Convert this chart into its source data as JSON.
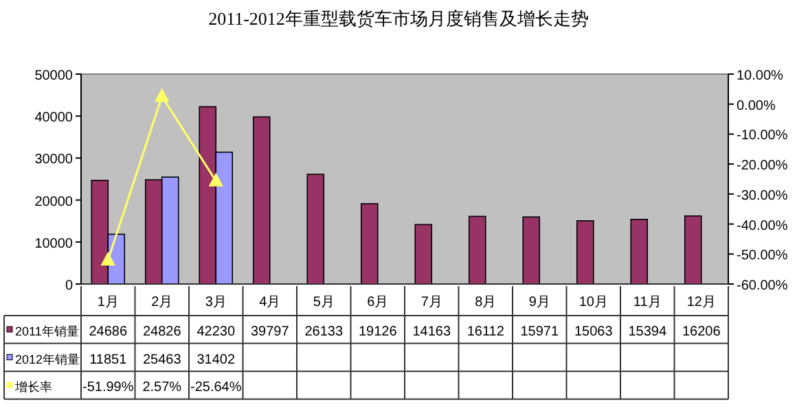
{
  "chart_data": {
    "type": "bar",
    "title": "2011-2012年重型载货车市场月度销售及增长走势",
    "categories": [
      "1月",
      "2月",
      "3月",
      "4月",
      "5月",
      "6月",
      "7月",
      "8月",
      "9月",
      "10月",
      "11月",
      "12月"
    ],
    "series": [
      {
        "name": "2011年销量",
        "color": "#993366",
        "values": [
          24686,
          24826,
          42230,
          39797,
          26133,
          19126,
          14163,
          16112,
          15971,
          15063,
          15394,
          16206
        ],
        "value_labels": [
          "24686",
          "24826",
          "42230",
          "39797",
          "26133",
          "19126",
          "14163",
          "16112",
          "15971",
          "15063",
          "15394",
          "16206"
        ]
      },
      {
        "name": "2012年销量",
        "color": "#9999ff",
        "values": [
          11851,
          25463,
          31402,
          null,
          null,
          null,
          null,
          null,
          null,
          null,
          null,
          null
        ],
        "value_labels": [
          "11851",
          "25463",
          "31402",
          null,
          null,
          null,
          null,
          null,
          null,
          null,
          null,
          null
        ]
      },
      {
        "name": "增长率",
        "type": "line",
        "axis": "y2",
        "color": "#ffff66",
        "marker": "triangle",
        "values": [
          -51.99,
          2.57,
          -25.64,
          null,
          null,
          null,
          null,
          null,
          null,
          null,
          null,
          null
        ],
        "value_labels": [
          "-51.99%",
          "2.57%",
          "-25.64%",
          null,
          null,
          null,
          null,
          null,
          null,
          null,
          null,
          null
        ]
      }
    ],
    "legend": "bottom left",
    "ylim": [
      0,
      50000
    ],
    "yticks": [
      0,
      10000,
      20000,
      30000,
      40000,
      50000
    ],
    "y2lim": [
      -60,
      10
    ],
    "y2ticks": [
      {
        "value": 10,
        "label": "10.00%"
      },
      {
        "value": 0,
        "label": "0.00%"
      },
      {
        "value": -10,
        "label": "-10.00%"
      },
      {
        "value": -20,
        "label": "-20.00%"
      },
      {
        "value": -30,
        "label": "-30.00%"
      },
      {
        "value": -40,
        "label": "-40.00%"
      },
      {
        "value": -50,
        "label": "-50.00%"
      },
      {
        "value": -60,
        "label": "-60.00%"
      }
    ]
  }
}
